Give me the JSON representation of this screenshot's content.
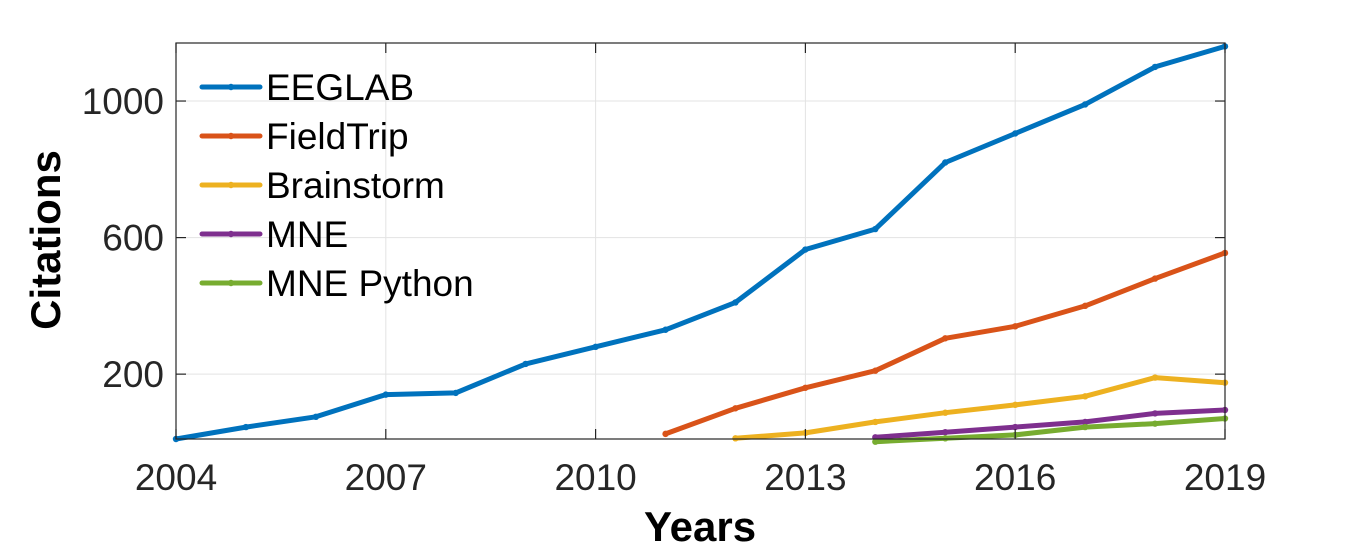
{
  "chart_data": {
    "type": "line",
    "title": "",
    "xlabel": "Years",
    "ylabel": "Citations",
    "xlim": [
      2004,
      2019
    ],
    "ylim": [
      10,
      1170
    ],
    "xticks": [
      2004,
      2007,
      2010,
      2013,
      2016,
      2019
    ],
    "xtick_labels": [
      "2004",
      "2007",
      "2010",
      "2013",
      "2016",
      "2019"
    ],
    "yticks": [
      200,
      600,
      1000
    ],
    "ytick_labels": [
      "200",
      "600",
      "1000"
    ],
    "grid": true,
    "legend_position": "top-left",
    "series": [
      {
        "name": "EEGLAB",
        "color": "#0072BD",
        "x": [
          2004,
          2005,
          2006,
          2007,
          2008,
          2009,
          2010,
          2011,
          2012,
          2013,
          2014,
          2015,
          2016,
          2017,
          2018,
          2019
        ],
        "y": [
          10,
          45,
          75,
          140,
          145,
          230,
          280,
          330,
          410,
          565,
          625,
          820,
          905,
          990,
          1100,
          1160
        ]
      },
      {
        "name": "FieldTrip",
        "color": "#D95319",
        "x": [
          2011,
          2012,
          2013,
          2014,
          2015,
          2016,
          2017,
          2018,
          2019
        ],
        "y": [
          25,
          100,
          160,
          210,
          305,
          340,
          400,
          480,
          555
        ]
      },
      {
        "name": "Brainstorm",
        "color": "#EDB120",
        "x": [
          2012,
          2013,
          2014,
          2015,
          2016,
          2017,
          2018,
          2019
        ],
        "y": [
          12,
          28,
          60,
          87,
          110,
          135,
          190,
          175
        ]
      },
      {
        "name": "MNE",
        "color": "#7E2F8E",
        "x": [
          2014,
          2015,
          2016,
          2017,
          2018,
          2019
        ],
        "y": [
          15,
          30,
          45,
          60,
          85,
          95
        ]
      },
      {
        "name": "MNE Python",
        "color": "#77AC30",
        "x": [
          2014,
          2015,
          2016,
          2017,
          2018,
          2019
        ],
        "y": [
          2,
          12,
          22,
          45,
          55,
          70
        ]
      }
    ]
  }
}
